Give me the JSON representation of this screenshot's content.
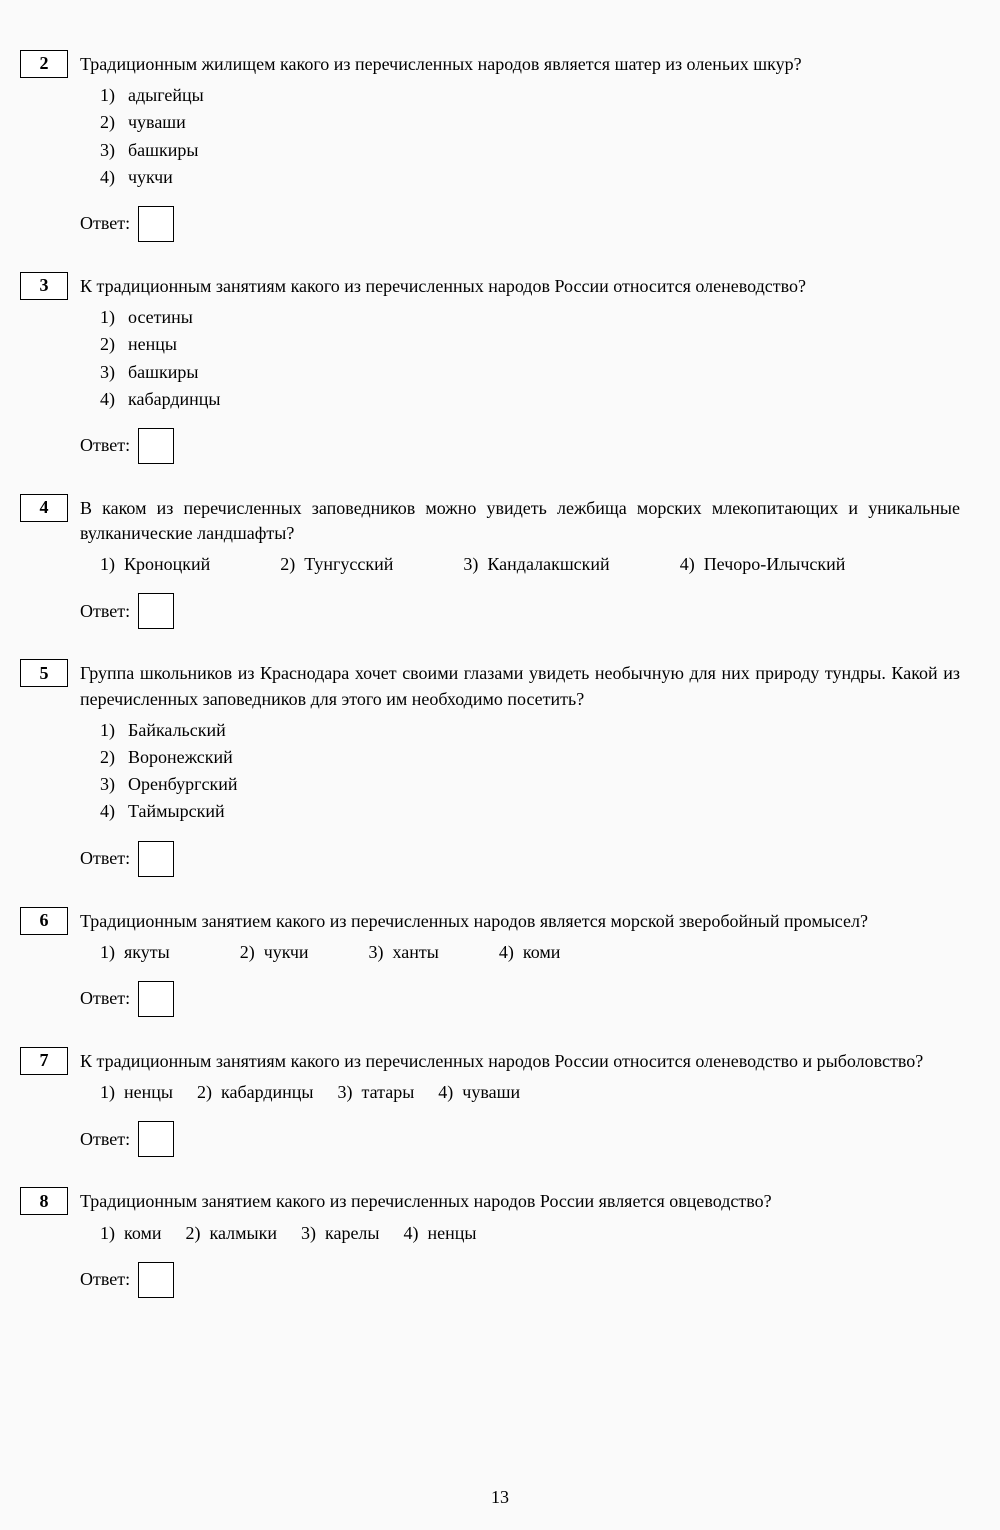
{
  "page_number": "13",
  "answer_label": "Ответ:",
  "questions": [
    {
      "number": "2",
      "text": "Традиционным жилищем какого из перечисленных народов является шатер из оленьих шкур?",
      "layout": "vertical",
      "options": [
        {
          "n": "1)",
          "label": "адыгейцы"
        },
        {
          "n": "2)",
          "label": "чуваши"
        },
        {
          "n": "3)",
          "label": "башкиры"
        },
        {
          "n": "4)",
          "label": "чукчи"
        }
      ]
    },
    {
      "number": "3",
      "text": "К традиционным занятиям какого из перечисленных народов России относится оленеводство?",
      "layout": "vertical",
      "options": [
        {
          "n": "1)",
          "label": "осетины"
        },
        {
          "n": "2)",
          "label": "ненцы"
        },
        {
          "n": "3)",
          "label": "башкиры"
        },
        {
          "n": "4)",
          "label": "кабардинцы"
        }
      ]
    },
    {
      "number": "4",
      "text": "В каком из перечисленных заповедников можно увидеть лежбища морских млекопитающих и уникальные вулканические ландшафты?",
      "layout": "horizontal",
      "options": [
        {
          "n": "1)",
          "label": "Кроноцкий"
        },
        {
          "n": "2)",
          "label": "Тунгусский"
        },
        {
          "n": "3)",
          "label": "Кандалакшский"
        },
        {
          "n": "4)",
          "label": "Печоро-Илычский"
        }
      ],
      "gaps": [
        0,
        70,
        70,
        70
      ]
    },
    {
      "number": "5",
      "text": "Группа школьников из Краснодара хочет своими глазами увидеть необычную для них природу тундры. Какой из  перечисленных заповедников  для этого им необходимо посетить?",
      "layout": "vertical",
      "options": [
        {
          "n": "1)",
          "label": "Байкальский"
        },
        {
          "n": "2)",
          "label": "Воронежский"
        },
        {
          "n": "3)",
          "label": "Оренбургский"
        },
        {
          "n": "4)",
          "label": "Таймырский"
        }
      ]
    },
    {
      "number": "6",
      "text": "Традиционным занятием какого из перечисленных народов является морской зверобойный промысел?",
      "layout": "horizontal",
      "options": [
        {
          "n": "1)",
          "label": "якуты"
        },
        {
          "n": "2)",
          "label": "чукчи"
        },
        {
          "n": "3)",
          "label": "ханты"
        },
        {
          "n": "4)",
          "label": "коми"
        }
      ],
      "gaps": [
        0,
        70,
        60,
        60
      ]
    },
    {
      "number": "7",
      "text": "К традиционным занятиям какого из перечисленных народов России относится оленеводство и рыболовство?",
      "layout": "horizontal",
      "options": [
        {
          "n": "1)",
          "label": "ненцы"
        },
        {
          "n": "2)",
          "label": "кабардинцы"
        },
        {
          "n": "3)",
          "label": "татары"
        },
        {
          "n": "4)",
          "label": "чуваши"
        }
      ],
      "gaps": [
        0,
        24,
        24,
        24
      ]
    },
    {
      "number": "8",
      "text": "Традиционным занятием какого из перечисленных народов России является овцеводство?",
      "layout": "horizontal",
      "options": [
        {
          "n": "1)",
          "label": "коми"
        },
        {
          "n": "2)",
          "label": "калмыки"
        },
        {
          "n": "3)",
          "label": "карелы"
        },
        {
          "n": "4)",
          "label": "ненцы"
        }
      ],
      "gaps": [
        0,
        24,
        24,
        24
      ]
    }
  ]
}
